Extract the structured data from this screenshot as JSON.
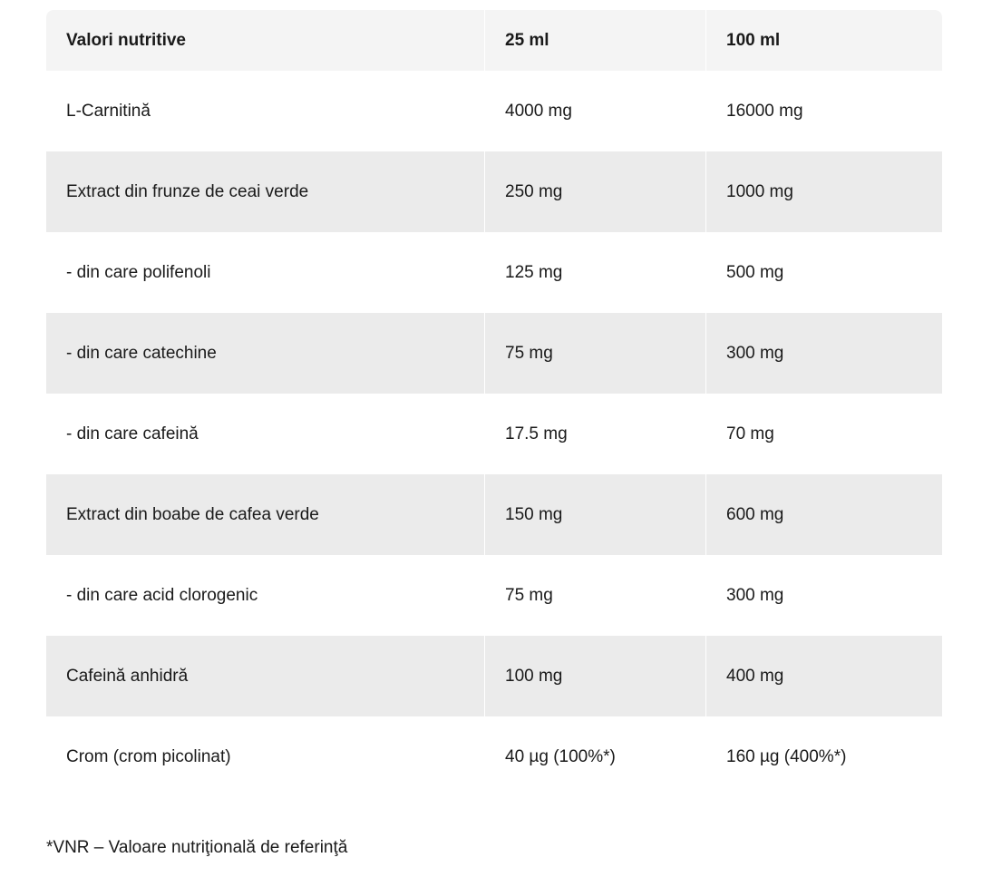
{
  "table": {
    "headers": [
      "Valori nutritive",
      "25 ml",
      "100 ml"
    ],
    "rows": [
      [
        "L-Carnitină",
        "4000 mg",
        "16000 mg"
      ],
      [
        "Extract din frunze de ceai verde",
        "250 mg",
        "1000 mg"
      ],
      [
        "- din care polifenoli",
        "125 mg",
        "500 mg"
      ],
      [
        "- din care catechine",
        "75 mg",
        "300 mg"
      ],
      [
        "- din care cafeină",
        "17.5 mg",
        "70 mg"
      ],
      [
        "Extract din boabe de cafea verde",
        "150 mg",
        "600 mg"
      ],
      [
        "- din care acid clorogenic",
        "75 mg",
        "300 mg"
      ],
      [
        "Cafeină anhidră",
        "100 mg",
        "400 mg"
      ],
      [
        "Crom (crom picolinat)",
        "40 µg (100%*)",
        "160 µg (400%*)"
      ]
    ]
  },
  "footnote": "*VNR – Valoare nutriţională de referinţă",
  "colors": {
    "header_bg": "#f4f4f4",
    "stripe_bg": "#ebebeb"
  }
}
